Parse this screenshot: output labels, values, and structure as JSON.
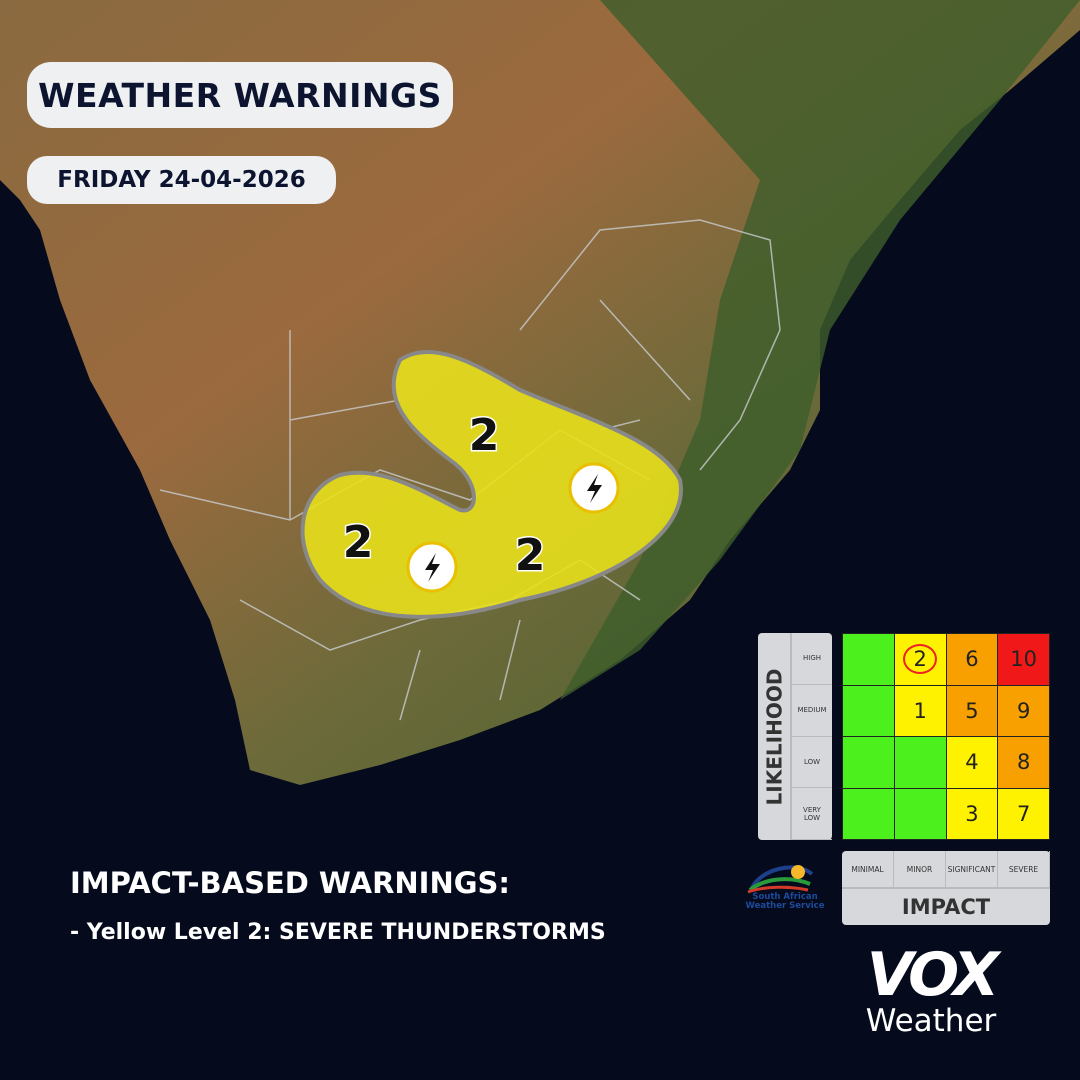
{
  "header": {
    "title": "WEATHER WARNINGS",
    "date": "FRIDAY 24-04-2026"
  },
  "map": {
    "warning_color": "#e8e01c",
    "areas": [
      {
        "level": "2",
        "icon": "thunderstorm-icon"
      },
      {
        "level": "2",
        "icon": "thunderstorm-icon"
      },
      {
        "level": "2",
        "icon": "none"
      }
    ]
  },
  "legend": {
    "heading": "IMPACT-BASED WARNINGS:",
    "items": [
      "- Yellow Level 2: SEVERE THUNDERSTORMS"
    ]
  },
  "matrix": {
    "likelihood_title": "LIKELIHOOD",
    "likelihood": [
      "HIGH",
      "MEDIUM",
      "LOW",
      "VERY LOW"
    ],
    "impact_title": "IMPACT",
    "impact": [
      "MINIMAL",
      "MINOR",
      "SIGNIFICANT",
      "SEVERE"
    ],
    "rows": [
      [
        {
          "v": "",
          "c": "#4cf01c"
        },
        {
          "v": "2",
          "c": "#fff200",
          "selected": true
        },
        {
          "v": "6",
          "c": "#f7a000"
        },
        {
          "v": "10",
          "c": "#f01818"
        }
      ],
      [
        {
          "v": "",
          "c": "#4cf01c"
        },
        {
          "v": "1",
          "c": "#fff200"
        },
        {
          "v": "5",
          "c": "#f7a000"
        },
        {
          "v": "9",
          "c": "#f7a000"
        }
      ],
      [
        {
          "v": "",
          "c": "#4cf01c"
        },
        {
          "v": "",
          "c": "#4cf01c"
        },
        {
          "v": "4",
          "c": "#fff200"
        },
        {
          "v": "8",
          "c": "#f7a000"
        }
      ],
      [
        {
          "v": "",
          "c": "#4cf01c"
        },
        {
          "v": "",
          "c": "#4cf01c"
        },
        {
          "v": "3",
          "c": "#fff200"
        },
        {
          "v": "7",
          "c": "#fff200"
        }
      ]
    ]
  },
  "logos": {
    "saws": "South African Weather Service",
    "vox_mark": "VOX",
    "vox_word": "Weather"
  }
}
